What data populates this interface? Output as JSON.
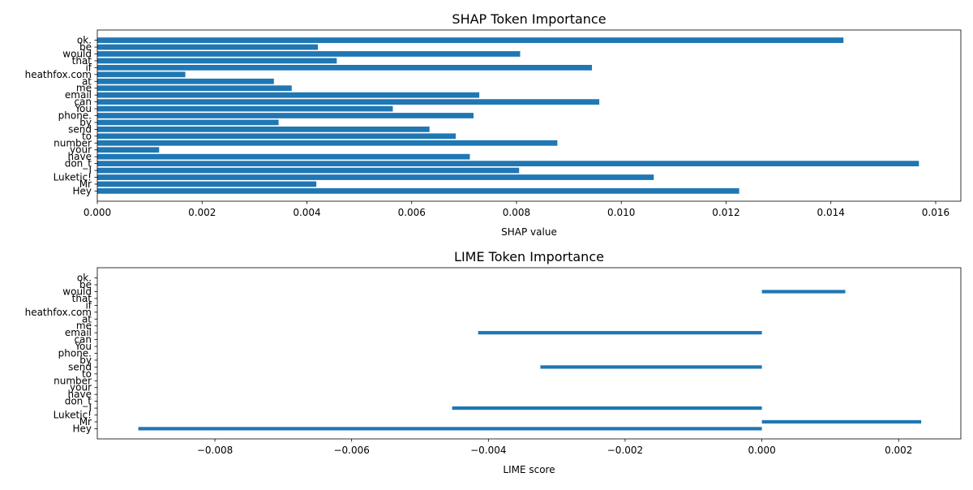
{
  "chart_data": [
    {
      "type": "bar",
      "orientation": "horizontal",
      "title": "SHAP Token Importance",
      "xlabel": "SHAP value",
      "ylabel": "",
      "categories": [
        "Hey",
        "Mr",
        "Luketic!",
        "I",
        "don_t",
        "have",
        "your",
        "number",
        "to",
        "send",
        "by",
        "phone.",
        "You",
        "can",
        "email",
        "me",
        "at",
        "heathfox.com",
        "if",
        "that",
        "would",
        "be",
        "ok."
      ],
      "values": [
        0.01225,
        0.00418,
        0.01062,
        0.00805,
        0.01568,
        0.00711,
        0.00118,
        0.00878,
        0.00684,
        0.00634,
        0.00346,
        0.00718,
        0.00564,
        0.00958,
        0.00729,
        0.00371,
        0.00337,
        0.00168,
        0.00944,
        0.00457,
        0.00807,
        0.00421,
        0.01424
      ],
      "xlim": [
        0,
        0.01648
      ],
      "xticks": [
        0.0,
        0.002,
        0.004,
        0.006,
        0.008,
        0.01,
        0.012,
        0.014,
        0.016
      ],
      "xtick_labels": [
        "0.000",
        "0.002",
        "0.004",
        "0.006",
        "0.008",
        "0.010",
        "0.012",
        "0.014",
        "0.016"
      ],
      "color": "#1f77b4",
      "grid": false
    },
    {
      "type": "bar",
      "orientation": "horizontal",
      "title": "LIME Token Importance",
      "xlabel": "LIME score",
      "ylabel": "",
      "categories": [
        "Hey",
        "Mr",
        "Luketic!",
        "I",
        "don_t",
        "have",
        "your",
        "number",
        "to",
        "send",
        "by",
        "phone.",
        "You",
        "can",
        "email",
        "me",
        "at",
        "heathfox.com",
        "if",
        "that",
        "would",
        "be",
        "ok."
      ],
      "values": [
        -0.00912,
        0.00233,
        0,
        -0.00453,
        0,
        0,
        0,
        0,
        0,
        -0.00324,
        0,
        0,
        0,
        0,
        -0.00415,
        0,
        0,
        0,
        0,
        0,
        0.00122,
        0,
        0
      ],
      "xlim": [
        -0.00972,
        0.00291
      ],
      "xticks": [
        -0.008,
        -0.006,
        -0.004,
        -0.002,
        0.0,
        0.002
      ],
      "xtick_labels": [
        "−0.008",
        "−0.006",
        "−0.004",
        "−0.002",
        "0.000",
        "0.002"
      ],
      "color": "#1f77b4",
      "grid": false
    }
  ]
}
